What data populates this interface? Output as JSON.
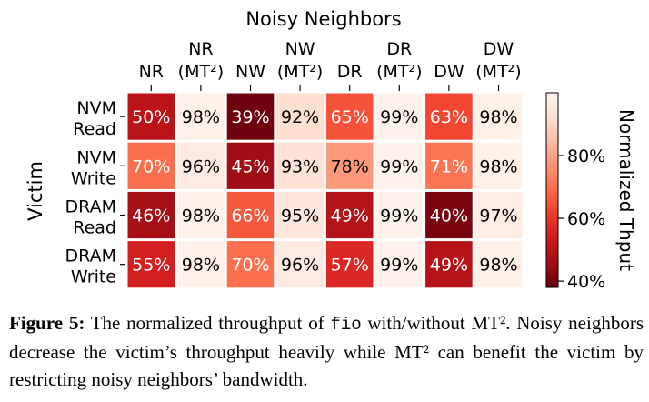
{
  "chart_data": {
    "type": "heatmap",
    "title": "Noisy Neighbors",
    "ylabel": "Victim",
    "colorbar_label": "Normalized Thput",
    "colorbar_ticks": [
      "40%",
      "60%",
      "80%"
    ],
    "colorbar_tick_values": [
      40,
      60,
      80
    ],
    "value_range": [
      38,
      100
    ],
    "columns": [
      {
        "line1": "",
        "line2": "NR"
      },
      {
        "line1": "NR",
        "line2": "(MT²)"
      },
      {
        "line1": "",
        "line2": "NW"
      },
      {
        "line1": "NW",
        "line2": "(MT²)"
      },
      {
        "line1": "",
        "line2": "DR"
      },
      {
        "line1": "DR",
        "line2": "(MT²)"
      },
      {
        "line1": "",
        "line2": "DW"
      },
      {
        "line1": "DW",
        "line2": "(MT²)"
      }
    ],
    "rows": [
      {
        "line1": "NVM",
        "line2": "Read"
      },
      {
        "line1": "NVM",
        "line2": "Write"
      },
      {
        "line1": "DRAM",
        "line2": "Read"
      },
      {
        "line1": "DRAM",
        "line2": "Write"
      }
    ],
    "values": [
      [
        50,
        98,
        39,
        92,
        65,
        99,
        63,
        98
      ],
      [
        70,
        96,
        45,
        93,
        78,
        99,
        71,
        98
      ],
      [
        46,
        98,
        66,
        95,
        49,
        99,
        40,
        97
      ],
      [
        55,
        98,
        70,
        96,
        57,
        99,
        49,
        98
      ]
    ],
    "value_suffix": "%"
  },
  "caption": {
    "figure_label": "Figure 5:",
    "text_before_code": " The normalized throughput of ",
    "code": "fio",
    "text_after_code": " with/without MT². Noisy neighbors decrease the victim’s throughput heavily while MT² can benefit the victim by restricting noisy neighbors’ bandwidth."
  }
}
